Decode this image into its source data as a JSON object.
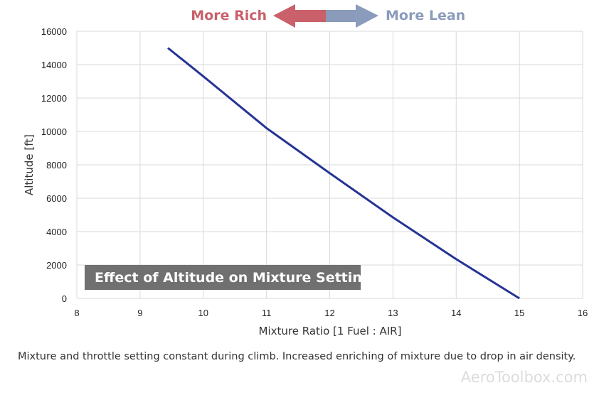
{
  "chart_data": {
    "type": "line",
    "title": "Effect of Altitude on Mixture Setting",
    "xlabel": "Mixture Ratio [1 Fuel : AIR]",
    "ylabel": "Altitude [ft]",
    "xlim": [
      8,
      16
    ],
    "ylim": [
      0,
      16000
    ],
    "xticks": [
      8,
      9,
      10,
      11,
      12,
      13,
      14,
      15,
      16
    ],
    "yticks": [
      0,
      2000,
      4000,
      6000,
      8000,
      10000,
      12000,
      14000,
      16000
    ],
    "grid": true,
    "series": [
      {
        "color": "#253494",
        "x": [
          9.44,
          10.0,
          11.0,
          12.0,
          13.0,
          14.0,
          15.0
        ],
        "y": [
          15000,
          13300,
          10200,
          7500,
          4850,
          2350,
          0
        ]
      }
    ],
    "annotations": {
      "rich": {
        "text": "More Rich",
        "color": "#c9606a"
      },
      "lean": {
        "text": "More Lean",
        "color": "#8a9bbb"
      }
    }
  },
  "caption": "Mixture and throttle setting constant during climb. Increased enriching of mixture due to drop in air density.",
  "watermark": "AeroToolbox.com"
}
